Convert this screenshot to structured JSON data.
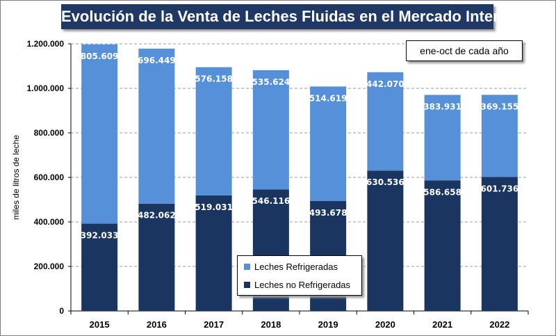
{
  "chart_data": {
    "type": "bar",
    "stacked": true,
    "title": "Evolución de la Venta de Leches Fluidas en el Mercado Interno",
    "annotation": "ene-oct de cada año",
    "xlabel": "",
    "ylabel": "miles de litros de leche",
    "ylim": [
      0,
      1200000
    ],
    "yticks": [
      0,
      200000,
      400000,
      600000,
      800000,
      1000000,
      1200000
    ],
    "ytick_labels": [
      "0",
      "200.000",
      "400.000",
      "600.000",
      "800.000",
      "1.000.000",
      "1.200.000"
    ],
    "categories": [
      "2015",
      "2016",
      "2017",
      "2018",
      "2019",
      "2020",
      "2021",
      "2022"
    ],
    "grid": true,
    "legend_position": "bottom-center",
    "series": [
      {
        "name": "Leches no Refrigeradas",
        "color": "#1a3560",
        "values": [
          392033,
          482062,
          519031,
          546116,
          493678,
          630536,
          586658,
          601736
        ],
        "labels": [
          "392.033",
          "482.062",
          "519.031",
          "546.116",
          "493.678",
          "630.536",
          "586.658",
          "601.736"
        ]
      },
      {
        "name": "Leches Refrigeradas",
        "color": "#5590d9",
        "values": [
          805609,
          696449,
          576158,
          535624,
          514619,
          442070,
          383931,
          369155
        ],
        "labels": [
          "805.609",
          "696.449",
          "576.158",
          "535.624",
          "514.619",
          "442.070",
          "383.931",
          "369.155"
        ]
      }
    ]
  },
  "legend_order": [
    "Leches Refrigeradas",
    "Leches no Refrigeradas"
  ]
}
